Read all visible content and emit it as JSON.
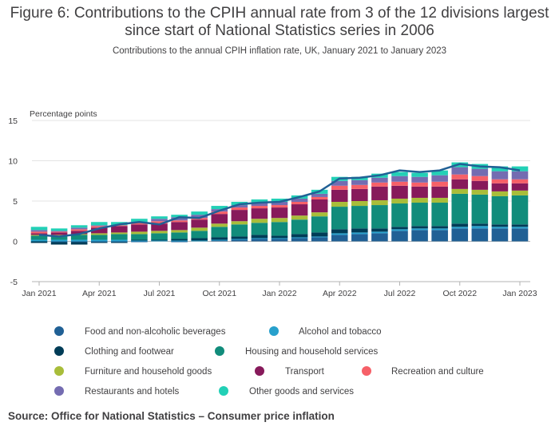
{
  "title": "Figure 6: Contributions to the CPIH annual rate from 3 of the 12 divisions largest since start of National Statistics series in 2006",
  "subtitle": "Contributions to the annual CPIH inflation rate, UK, January 2021 to January 2023",
  "source": "Source: Office for National Statistics – Consumer price inflation",
  "chart_data": {
    "type": "bar",
    "stacked": true,
    "ylabel": "Percentage points",
    "ylim": [
      -5,
      15
    ],
    "yticks": [
      -5,
      0,
      5,
      10,
      15
    ],
    "grid": true,
    "legend_position": "bottom",
    "categories": [
      "Jan 2021",
      "Feb 2021",
      "Mar 2021",
      "Apr 2021",
      "May 2021",
      "Jun 2021",
      "Jul 2021",
      "Aug 2021",
      "Sep 2021",
      "Oct 2021",
      "Nov 2021",
      "Dec 2021",
      "Jan 2022",
      "Feb 2022",
      "Mar 2022",
      "Apr 2022",
      "May 2022",
      "Jun 2022",
      "Jul 2022",
      "Aug 2022",
      "Sep 2022",
      "Oct 2022",
      "Nov 2022",
      "Dec 2022",
      "Jan 2023"
    ],
    "x_tick_labels": [
      "Jan 2021",
      "Apr 2021",
      "Jul 2021",
      "Oct 2021",
      "Jan 2022",
      "Apr 2022",
      "Jul 2022",
      "Oct 2022",
      "Jan 2023"
    ],
    "series": [
      {
        "name": "Food and non-alcoholic beverages",
        "color": "#206095",
        "values": [
          0.0,
          -0.1,
          -0.1,
          -0.1,
          -0.1,
          -0.1,
          0.0,
          -0.1,
          0.0,
          0.1,
          0.2,
          0.3,
          0.3,
          0.4,
          0.5,
          0.8,
          0.9,
          1.0,
          1.3,
          1.4,
          1.4,
          1.6,
          1.6,
          1.6,
          1.6
        ]
      },
      {
        "name": "Alcohol and tobacco",
        "color": "#27a0cc",
        "values": [
          0.2,
          0.2,
          0.2,
          0.2,
          0.2,
          0.1,
          0.1,
          0.1,
          0.1,
          0.1,
          0.1,
          0.1,
          0.1,
          0.1,
          0.1,
          0.2,
          0.2,
          0.2,
          0.2,
          0.2,
          0.2,
          0.2,
          0.3,
          0.2,
          0.2
        ]
      },
      {
        "name": "Clothing and footwear",
        "color": "#003c57",
        "values": [
          -0.2,
          -0.3,
          -0.3,
          -0.1,
          -0.1,
          0.1,
          0.1,
          0.2,
          0.3,
          0.3,
          0.3,
          0.4,
          0.3,
          0.4,
          0.5,
          0.5,
          0.5,
          0.4,
          0.3,
          0.3,
          0.3,
          0.4,
          0.3,
          0.3,
          0.3
        ]
      },
      {
        "name": "Housing and household services",
        "color": "#118c7b",
        "values": [
          0.5,
          0.5,
          0.6,
          0.6,
          0.7,
          0.7,
          0.8,
          0.8,
          0.9,
          1.3,
          1.5,
          1.5,
          1.7,
          1.8,
          2.0,
          2.8,
          2.8,
          2.9,
          2.9,
          2.9,
          2.9,
          3.7,
          3.6,
          3.5,
          3.6
        ]
      },
      {
        "name": "Furniture and household goods",
        "color": "#a8bd3a",
        "values": [
          0.1,
          0.1,
          0.1,
          0.2,
          0.2,
          0.3,
          0.3,
          0.3,
          0.4,
          0.4,
          0.4,
          0.5,
          0.5,
          0.5,
          0.5,
          0.6,
          0.6,
          0.6,
          0.6,
          0.6,
          0.6,
          0.6,
          0.6,
          0.6,
          0.6
        ]
      },
      {
        "name": "Transport",
        "color": "#871a5b",
        "values": [
          0.2,
          0.3,
          0.4,
          0.7,
          0.8,
          0.9,
          0.9,
          1.0,
          1.0,
          1.2,
          1.4,
          1.3,
          1.3,
          1.4,
          1.6,
          1.5,
          1.5,
          1.7,
          1.6,
          1.4,
          1.4,
          1.2,
          1.1,
          1.0,
          0.9
        ]
      },
      {
        "name": "Recreation and culture",
        "color": "#f66068",
        "values": [
          0.2,
          0.1,
          0.2,
          0.2,
          0.1,
          0.2,
          0.3,
          0.2,
          0.2,
          0.3,
          0.3,
          0.3,
          0.3,
          0.3,
          0.3,
          0.5,
          0.5,
          0.5,
          0.5,
          0.5,
          0.6,
          0.6,
          0.6,
          0.5,
          0.5
        ]
      },
      {
        "name": "Restaurants and hotels",
        "color": "#746cb1",
        "values": [
          0.2,
          0.1,
          0.2,
          0.1,
          0.0,
          0.1,
          0.3,
          0.4,
          0.4,
          0.3,
          0.3,
          0.4,
          0.4,
          0.4,
          0.4,
          0.6,
          0.6,
          0.6,
          0.7,
          0.7,
          0.8,
          0.9,
          0.9,
          1.0,
          1.0
        ]
      },
      {
        "name": "Other goods and services",
        "color": "#22d0b6",
        "values": [
          0.4,
          0.3,
          0.3,
          0.4,
          0.4,
          0.4,
          0.3,
          0.3,
          0.4,
          0.4,
          0.4,
          0.4,
          0.4,
          0.4,
          0.5,
          0.5,
          0.4,
          0.5,
          0.5,
          0.5,
          0.6,
          0.6,
          0.6,
          0.6,
          0.6
        ]
      }
    ],
    "total_line": {
      "color": "#206095",
      "values": [
        0.8,
        0.6,
        0.9,
        1.6,
        2.1,
        2.4,
        2.1,
        3.0,
        2.9,
        3.8,
        4.6,
        4.8,
        4.9,
        5.5,
        6.2,
        7.8,
        7.9,
        8.2,
        8.8,
        8.6,
        8.8,
        9.6,
        9.3,
        9.2,
        8.8
      ]
    }
  }
}
